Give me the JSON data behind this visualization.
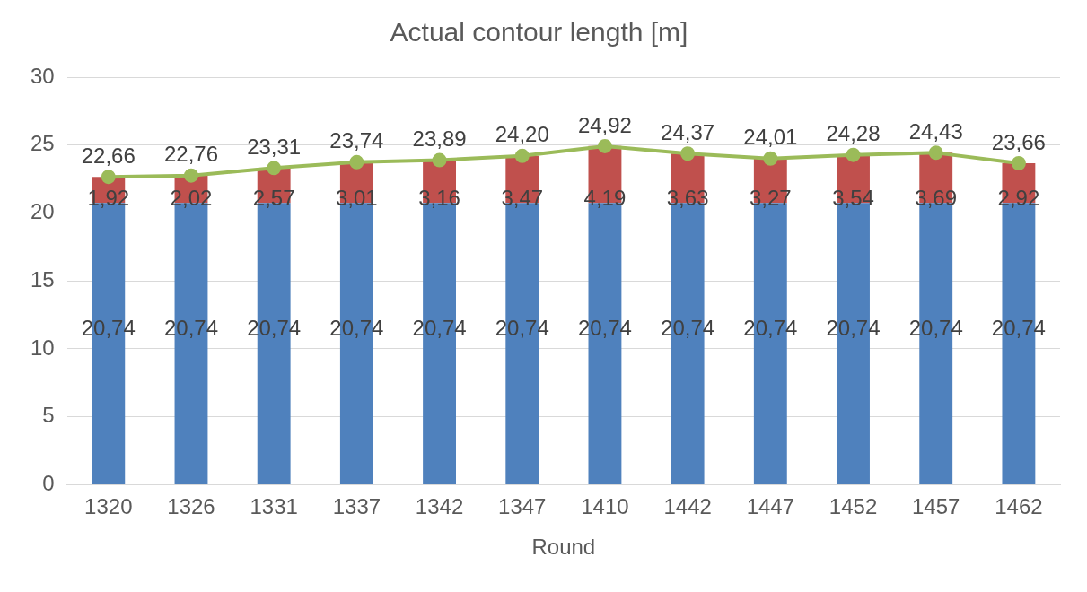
{
  "chart_data": {
    "type": "bar",
    "title": "Actual contour length [m]",
    "xlabel": "Round",
    "categories": [
      "1320",
      "1326",
      "1331",
      "1337",
      "1342",
      "1347",
      "1410",
      "1442",
      "1447",
      "1452",
      "1457",
      "1462"
    ],
    "series": [
      {
        "color": "#4f81bd",
        "values": [
          20.74,
          20.74,
          20.74,
          20.74,
          20.74,
          20.74,
          20.74,
          20.74,
          20.74,
          20.74,
          20.74,
          20.74
        ],
        "value_labels": [
          "20,74",
          "20,74",
          "20,74",
          "20,74",
          "20,74",
          "20,74",
          "20,74",
          "20,74",
          "20,74",
          "20,74",
          "20,74",
          "20,74"
        ]
      },
      {
        "color": "#c0504d",
        "values": [
          1.92,
          2.02,
          2.57,
          3.01,
          3.16,
          3.47,
          4.19,
          3.63,
          3.27,
          3.54,
          3.69,
          2.92
        ],
        "value_labels": [
          "1,92",
          "2,02",
          "2,57",
          "3,01",
          "3,16",
          "3,47",
          "4,19",
          "3,63",
          "3,27",
          "3,54",
          "3,69",
          "2,92"
        ]
      },
      {
        "type": "line",
        "color": "#9bbb59",
        "values": [
          22.66,
          22.76,
          23.31,
          23.74,
          23.89,
          24.2,
          24.92,
          24.37,
          24.01,
          24.28,
          24.43,
          23.66
        ],
        "value_labels": [
          "22,66",
          "22,76",
          "23,31",
          "23,74",
          "23,89",
          "24,20",
          "24,92",
          "24,37",
          "24,01",
          "24,28",
          "24,43",
          "23,66"
        ]
      }
    ],
    "stacked": true,
    "ylim": [
      0,
      30
    ],
    "yticks": [
      0,
      5,
      10,
      15,
      20,
      25,
      30
    ],
    "grid": "y",
    "legend": false,
    "marker": "circle",
    "line_style": "solid"
  }
}
